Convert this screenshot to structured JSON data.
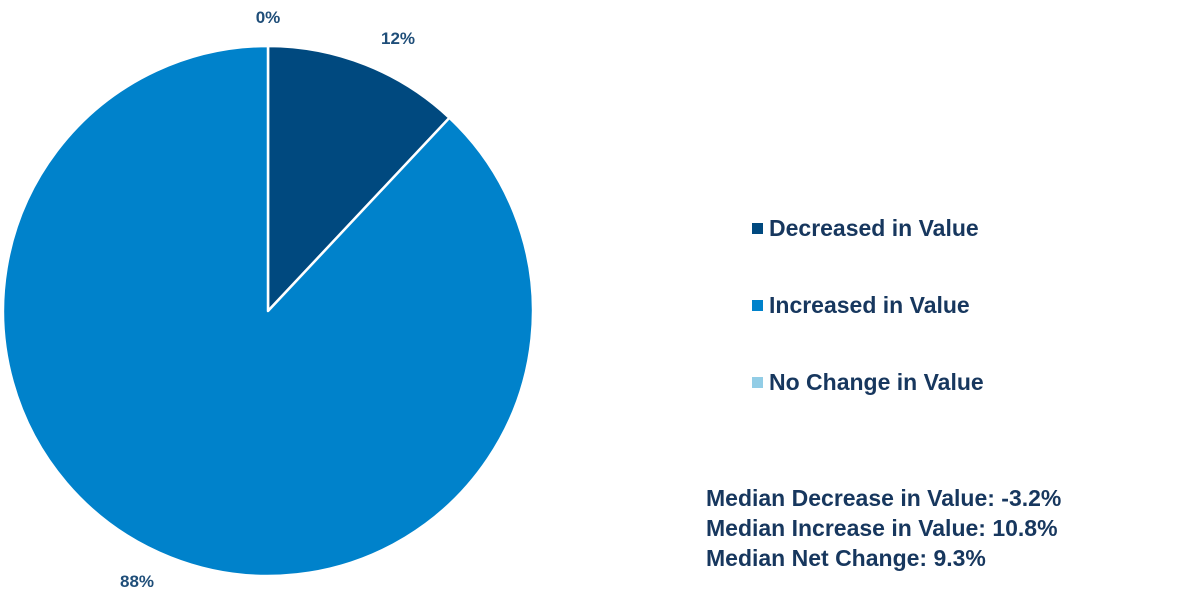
{
  "chart_data": {
    "type": "pie",
    "slices": [
      {
        "name": "Decreased in Value",
        "value": 12,
        "label": "12%",
        "color": "#00497f"
      },
      {
        "name": "Increased in Value",
        "value": 88,
        "label": "88%",
        "color": "#0082cb"
      },
      {
        "name": "No Change in Value",
        "value": 0,
        "label": "0%",
        "color": "#92cde6"
      }
    ],
    "legend_position": "right"
  },
  "stats": {
    "median_decrease": "Median Decrease in Value: -3.2%",
    "median_increase": "Median Increase in Value:  10.8%",
    "median_net": "Median Net Change: 9.3%"
  }
}
